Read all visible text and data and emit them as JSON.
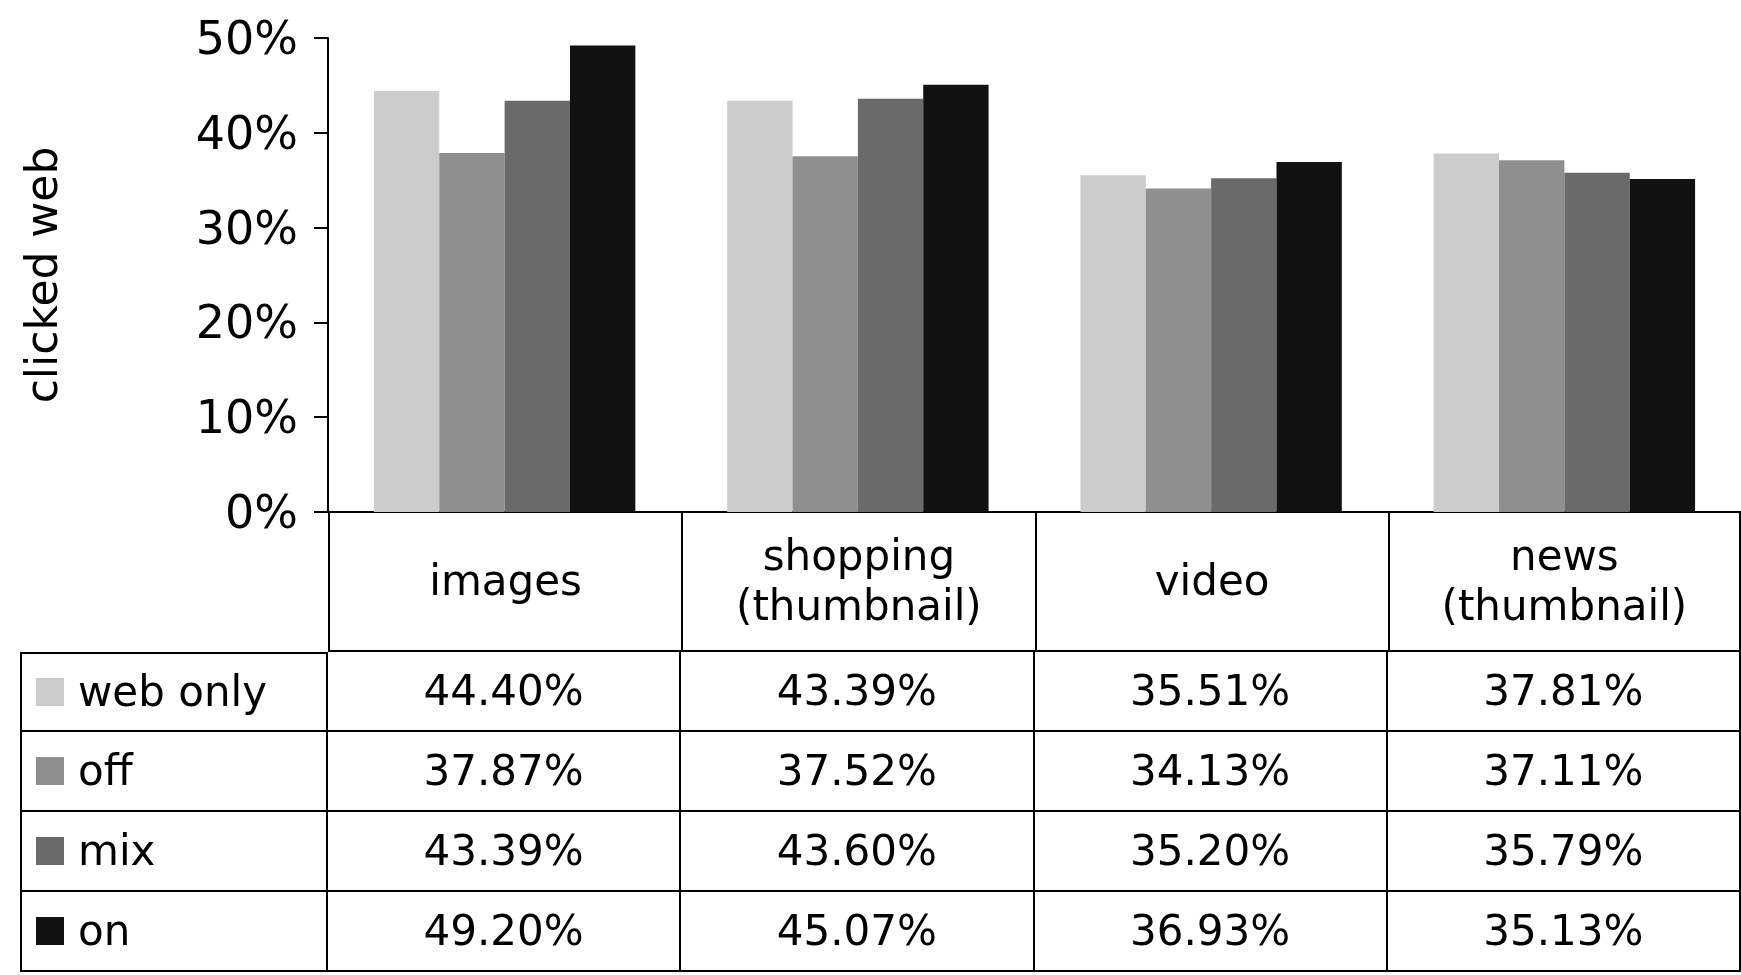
{
  "chart_data": {
    "type": "bar",
    "ylabel": "clicked web",
    "categories": [
      "images",
      "shopping (thumbnail)",
      "video",
      "news (thumbnail)"
    ],
    "series": [
      {
        "name": "web only",
        "color": "#cccccc",
        "values": [
          44.4,
          43.39,
          35.51,
          37.81
        ],
        "value_labels": [
          "44.40%",
          "43.39%",
          "35.51%",
          "37.81%"
        ]
      },
      {
        "name": "off",
        "color": "#8f8f8f",
        "values": [
          37.87,
          37.52,
          34.13,
          37.11
        ],
        "value_labels": [
          "37.87%",
          "37.52%",
          "34.13%",
          "37.11%"
        ]
      },
      {
        "name": "mix",
        "color": "#6a6a6a",
        "values": [
          43.39,
          43.6,
          35.2,
          35.79
        ],
        "value_labels": [
          "43.39%",
          "43.60%",
          "35.20%",
          "35.79%"
        ]
      },
      {
        "name": "on",
        "color": "#111111",
        "values": [
          49.2,
          45.07,
          36.93,
          35.13
        ],
        "value_labels": [
          "49.20%",
          "45.07%",
          "36.93%",
          "35.13%"
        ]
      }
    ],
    "ylim": [
      0,
      50
    ],
    "yticks": [
      {
        "value": 0,
        "label": "0%"
      },
      {
        "value": 10,
        "label": "10%"
      },
      {
        "value": 20,
        "label": "20%"
      },
      {
        "value": 30,
        "label": "30%"
      },
      {
        "value": 40,
        "label": "40%"
      },
      {
        "value": 50,
        "label": "50%"
      }
    ],
    "legend": "bottom"
  }
}
